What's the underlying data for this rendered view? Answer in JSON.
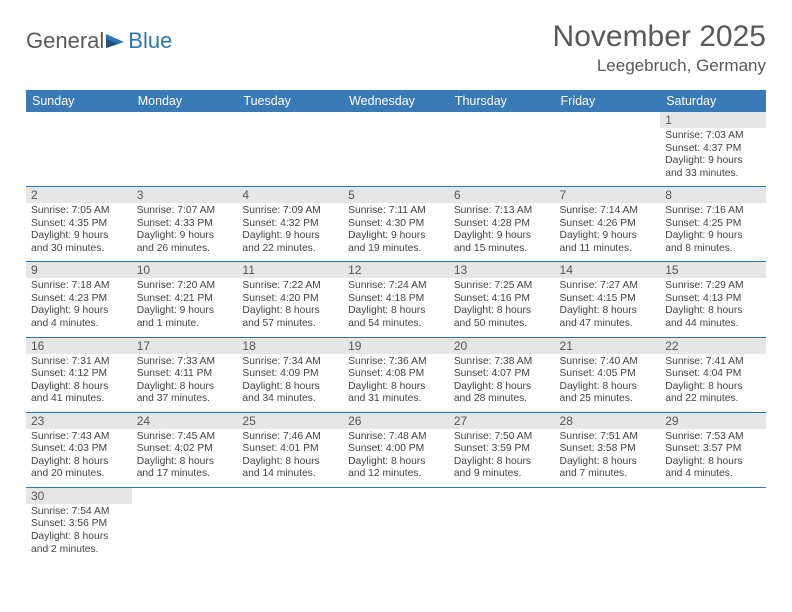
{
  "logo": {
    "text1": "General",
    "text2": "Blue"
  },
  "title": "November 2025",
  "location": "Leegebruch, Germany",
  "colors": {
    "header_bg": "#3a79b7",
    "header_text": "#ffffff",
    "rule": "#2e75b6",
    "daynum_bg": "#e6e6e6",
    "text": "#444444",
    "title_color": "#595959"
  },
  "fonts": {
    "title_size": 30,
    "location_size": 17,
    "header_size": 12.5,
    "cell_size": 10.3
  },
  "layout": {
    "columns": 7,
    "rows": 6
  },
  "headers": [
    "Sunday",
    "Monday",
    "Tuesday",
    "Wednesday",
    "Thursday",
    "Friday",
    "Saturday"
  ],
  "grid": [
    [
      null,
      null,
      null,
      null,
      null,
      null,
      {
        "day": "1",
        "lines": [
          "Sunrise: 7:03 AM",
          "Sunset: 4:37 PM",
          "Daylight: 9 hours and 33 minutes."
        ]
      }
    ],
    [
      {
        "day": "2",
        "lines": [
          "Sunrise: 7:05 AM",
          "Sunset: 4:35 PM",
          "Daylight: 9 hours and 30 minutes."
        ]
      },
      {
        "day": "3",
        "lines": [
          "Sunrise: 7:07 AM",
          "Sunset: 4:33 PM",
          "Daylight: 9 hours and 26 minutes."
        ]
      },
      {
        "day": "4",
        "lines": [
          "Sunrise: 7:09 AM",
          "Sunset: 4:32 PM",
          "Daylight: 9 hours and 22 minutes."
        ]
      },
      {
        "day": "5",
        "lines": [
          "Sunrise: 7:11 AM",
          "Sunset: 4:30 PM",
          "Daylight: 9 hours and 19 minutes."
        ]
      },
      {
        "day": "6",
        "lines": [
          "Sunrise: 7:13 AM",
          "Sunset: 4:28 PM",
          "Daylight: 9 hours and 15 minutes."
        ]
      },
      {
        "day": "7",
        "lines": [
          "Sunrise: 7:14 AM",
          "Sunset: 4:26 PM",
          "Daylight: 9 hours and 11 minutes."
        ]
      },
      {
        "day": "8",
        "lines": [
          "Sunrise: 7:16 AM",
          "Sunset: 4:25 PM",
          "Daylight: 9 hours and 8 minutes."
        ]
      }
    ],
    [
      {
        "day": "9",
        "lines": [
          "Sunrise: 7:18 AM",
          "Sunset: 4:23 PM",
          "Daylight: 9 hours and 4 minutes."
        ]
      },
      {
        "day": "10",
        "lines": [
          "Sunrise: 7:20 AM",
          "Sunset: 4:21 PM",
          "Daylight: 9 hours and 1 minute."
        ]
      },
      {
        "day": "11",
        "lines": [
          "Sunrise: 7:22 AM",
          "Sunset: 4:20 PM",
          "Daylight: 8 hours and 57 minutes."
        ]
      },
      {
        "day": "12",
        "lines": [
          "Sunrise: 7:24 AM",
          "Sunset: 4:18 PM",
          "Daylight: 8 hours and 54 minutes."
        ]
      },
      {
        "day": "13",
        "lines": [
          "Sunrise: 7:25 AM",
          "Sunset: 4:16 PM",
          "Daylight: 8 hours and 50 minutes."
        ]
      },
      {
        "day": "14",
        "lines": [
          "Sunrise: 7:27 AM",
          "Sunset: 4:15 PM",
          "Daylight: 8 hours and 47 minutes."
        ]
      },
      {
        "day": "15",
        "lines": [
          "Sunrise: 7:29 AM",
          "Sunset: 4:13 PM",
          "Daylight: 8 hours and 44 minutes."
        ]
      }
    ],
    [
      {
        "day": "16",
        "lines": [
          "Sunrise: 7:31 AM",
          "Sunset: 4:12 PM",
          "Daylight: 8 hours and 41 minutes."
        ]
      },
      {
        "day": "17",
        "lines": [
          "Sunrise: 7:33 AM",
          "Sunset: 4:11 PM",
          "Daylight: 8 hours and 37 minutes."
        ]
      },
      {
        "day": "18",
        "lines": [
          "Sunrise: 7:34 AM",
          "Sunset: 4:09 PM",
          "Daylight: 8 hours and 34 minutes."
        ]
      },
      {
        "day": "19",
        "lines": [
          "Sunrise: 7:36 AM",
          "Sunset: 4:08 PM",
          "Daylight: 8 hours and 31 minutes."
        ]
      },
      {
        "day": "20",
        "lines": [
          "Sunrise: 7:38 AM",
          "Sunset: 4:07 PM",
          "Daylight: 8 hours and 28 minutes."
        ]
      },
      {
        "day": "21",
        "lines": [
          "Sunrise: 7:40 AM",
          "Sunset: 4:05 PM",
          "Daylight: 8 hours and 25 minutes."
        ]
      },
      {
        "day": "22",
        "lines": [
          "Sunrise: 7:41 AM",
          "Sunset: 4:04 PM",
          "Daylight: 8 hours and 22 minutes."
        ]
      }
    ],
    [
      {
        "day": "23",
        "lines": [
          "Sunrise: 7:43 AM",
          "Sunset: 4:03 PM",
          "Daylight: 8 hours and 20 minutes."
        ]
      },
      {
        "day": "24",
        "lines": [
          "Sunrise: 7:45 AM",
          "Sunset: 4:02 PM",
          "Daylight: 8 hours and 17 minutes."
        ]
      },
      {
        "day": "25",
        "lines": [
          "Sunrise: 7:46 AM",
          "Sunset: 4:01 PM",
          "Daylight: 8 hours and 14 minutes."
        ]
      },
      {
        "day": "26",
        "lines": [
          "Sunrise: 7:48 AM",
          "Sunset: 4:00 PM",
          "Daylight: 8 hours and 12 minutes."
        ]
      },
      {
        "day": "27",
        "lines": [
          "Sunrise: 7:50 AM",
          "Sunset: 3:59 PM",
          "Daylight: 8 hours and 9 minutes."
        ]
      },
      {
        "day": "28",
        "lines": [
          "Sunrise: 7:51 AM",
          "Sunset: 3:58 PM",
          "Daylight: 8 hours and 7 minutes."
        ]
      },
      {
        "day": "29",
        "lines": [
          "Sunrise: 7:53 AM",
          "Sunset: 3:57 PM",
          "Daylight: 8 hours and 4 minutes."
        ]
      }
    ],
    [
      {
        "day": "30",
        "lines": [
          "Sunrise: 7:54 AM",
          "Sunset: 3:56 PM",
          "Daylight: 8 hours and 2 minutes."
        ]
      },
      null,
      null,
      null,
      null,
      null,
      null
    ]
  ]
}
